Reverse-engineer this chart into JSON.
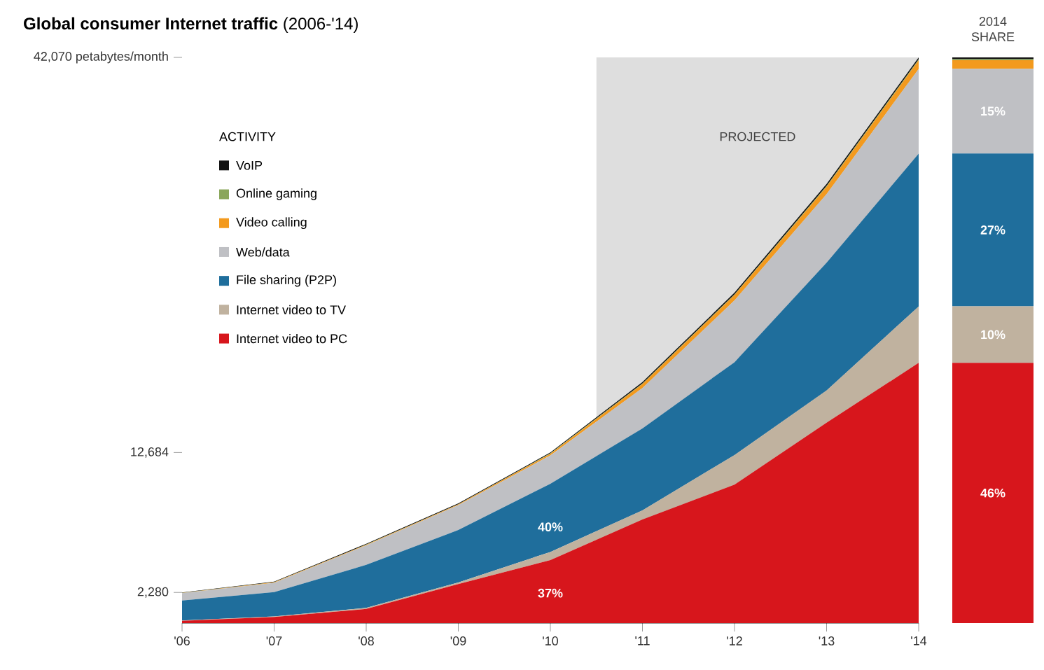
{
  "chart_data": [
    {
      "type": "area",
      "stacked": true,
      "title": "**Global consumer Internet traffic** (2006-'14)",
      "x": [
        2006,
        2007,
        2008,
        2009,
        2010,
        2011,
        2012,
        2013,
        2014
      ],
      "xlim": [
        2006,
        2014
      ],
      "xticks": [
        {
          "value": 2006,
          "label": "'06"
        },
        {
          "value": 2007,
          "label": "'07"
        },
        {
          "value": 2008,
          "label": "'08"
        },
        {
          "value": 2009,
          "label": "'09"
        },
        {
          "value": 2010,
          "label": "'10"
        },
        {
          "value": 2011,
          "label": "'11"
        },
        {
          "value": 2012,
          "label": "'12"
        },
        {
          "value": 2013,
          "label": "'13"
        },
        {
          "value": 2014,
          "label": "'14"
        }
      ],
      "ylim": [
        0,
        42070
      ],
      "yticks": [
        {
          "value": 2280,
          "label": "2,280"
        },
        {
          "value": 12684,
          "label": "12,684"
        },
        {
          "value": 42070,
          "label": "42,070 petabytes/month"
        }
      ],
      "legend": "top left",
      "legend_title": "ACTIVITY",
      "series": [
        {
          "name": "Internet video to PC",
          "color": "#d7161c",
          "values": [
            170,
            450,
            1050,
            2900,
            4690,
            7700,
            10300,
            14900,
            19350
          ]
        },
        {
          "name": "Internet video to TV",
          "color": "#c0b29f",
          "values": [
            30,
            50,
            80,
            120,
            600,
            680,
            2200,
            2400,
            4200
          ]
        },
        {
          "name": "File sharing (P2P)",
          "color": "#1f6e9c",
          "values": [
            1480,
            1800,
            3200,
            3900,
            5070,
            6100,
            6900,
            9500,
            11360
          ]
        },
        {
          "name": "Web/data",
          "color": "#bfc0c4",
          "values": [
            540,
            700,
            1450,
            1850,
            2110,
            3000,
            4600,
            5100,
            6300
          ]
        },
        {
          "name": "Video calling",
          "color": "#f39a1e",
          "values": [
            20,
            30,
            40,
            50,
            120,
            300,
            400,
            550,
            650
          ]
        },
        {
          "name": "Online gaming",
          "color": "#8aa65a",
          "values": [
            10,
            10,
            20,
            20,
            30,
            40,
            50,
            60,
            70
          ]
        },
        {
          "name": "VoIP",
          "color": "#111111",
          "values": [
            30,
            40,
            60,
            60,
            70,
            110,
            120,
            150,
            140
          ]
        }
      ],
      "bands": [
        {
          "axis": "x",
          "from": 2010.5,
          "to": 2014,
          "label": "PROJECTED",
          "color": "#dedede"
        }
      ],
      "annotations": [
        "40%",
        "37%"
      ]
    },
    {
      "type": "bar",
      "stacked": true,
      "title": "2014 SHARE",
      "categories": [
        null
      ],
      "ylim": [
        0,
        100
      ],
      "tick_labels": false,
      "series": [
        {
          "color": "#d7161c",
          "values": [
            46
          ],
          "value_labels": [
            "46%"
          ]
        },
        {
          "color": "#c0b29f",
          "values": [
            10
          ],
          "value_labels": [
            "10%"
          ]
        },
        {
          "color": "#1f6e9c",
          "values": [
            27
          ],
          "value_labels": [
            "27%"
          ]
        },
        {
          "color": "#bfc0c4",
          "values": [
            15
          ],
          "value_labels": [
            "15%"
          ]
        },
        {
          "color": "#f39a1e",
          "values": [
            1.5
          ],
          "value_labels": [
            null
          ]
        },
        {
          "color": "#8aa65a",
          "values": [
            0.2
          ],
          "value_labels": [
            null
          ]
        },
        {
          "color": "#111111",
          "values": [
            0.3
          ],
          "value_labels": [
            null
          ]
        }
      ]
    }
  ]
}
